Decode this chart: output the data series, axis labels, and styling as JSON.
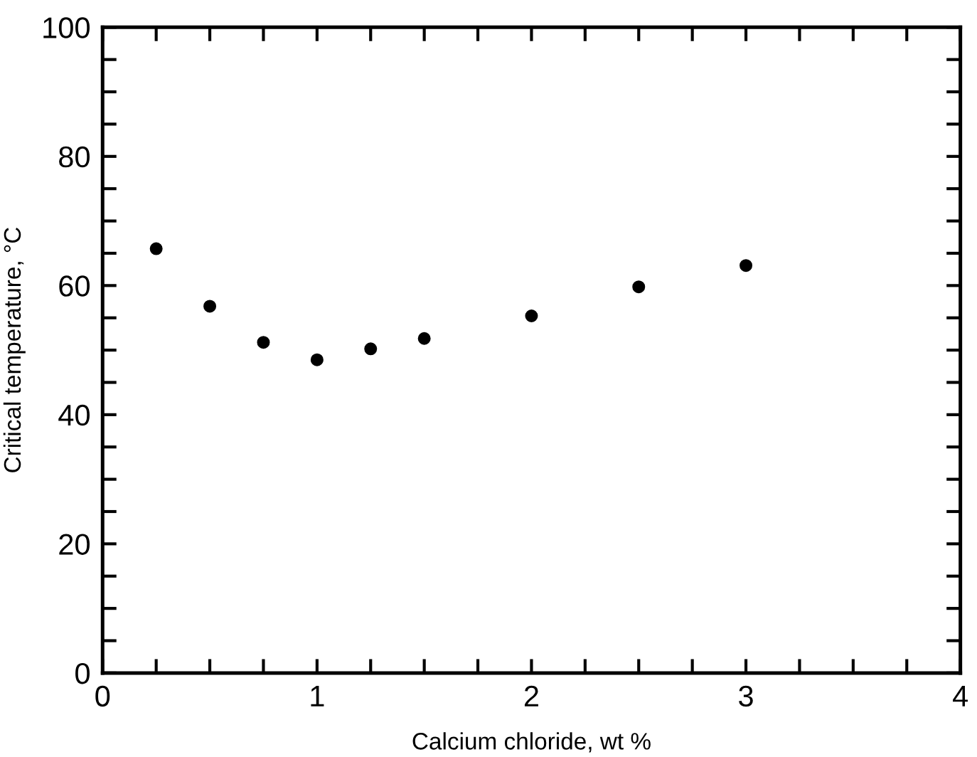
{
  "chart_data": {
    "type": "scatter",
    "xlabel": "Calcium chloride, wt %",
    "ylabel": "Critical temperature, °C",
    "x": [
      0.25,
      0.5,
      0.75,
      1.0,
      1.25,
      1.5,
      2.0,
      2.5,
      3.0
    ],
    "series": [
      {
        "color": "#000000",
        "values": [
          65.7,
          56.8,
          51.2,
          48.5,
          50.2,
          51.8,
          55.3,
          59.8,
          63.1
        ]
      }
    ],
    "xlim": [
      0,
      4
    ],
    "ylim": [
      0,
      100
    ],
    "xticks": [
      0,
      {
        "value": 0.25,
        "label": null
      },
      {
        "value": 0.5,
        "label": null
      },
      {
        "value": 0.75,
        "label": null
      },
      1,
      {
        "value": 1.25,
        "label": null
      },
      {
        "value": 1.5,
        "label": null
      },
      {
        "value": 1.75,
        "label": null
      },
      2,
      {
        "value": 2.25,
        "label": null
      },
      {
        "value": 2.5,
        "label": null
      },
      {
        "value": 2.75,
        "label": null
      },
      3,
      {
        "value": 3.25,
        "label": null
      },
      {
        "value": 3.5,
        "label": null
      },
      {
        "value": 3.75,
        "label": null
      },
      4
    ],
    "yticks": [
      0,
      {
        "value": 5,
        "label": null
      },
      {
        "value": 10,
        "label": null
      },
      {
        "value": 15,
        "label": null
      },
      20,
      {
        "value": 25,
        "label": null
      },
      {
        "value": 30,
        "label": null
      },
      {
        "value": 35,
        "label": null
      },
      40,
      {
        "value": 45,
        "label": null
      },
      {
        "value": 50,
        "label": null
      },
      {
        "value": 55,
        "label": null
      },
      60,
      {
        "value": 65,
        "label": null
      },
      {
        "value": 70,
        "label": null
      },
      {
        "value": 75,
        "label": null
      },
      80,
      {
        "value": 85,
        "label": null
      },
      {
        "value": 90,
        "label": null
      },
      {
        "value": 95,
        "label": null
      },
      100
    ],
    "marker": "circle",
    "grid": false,
    "legend": false
  }
}
